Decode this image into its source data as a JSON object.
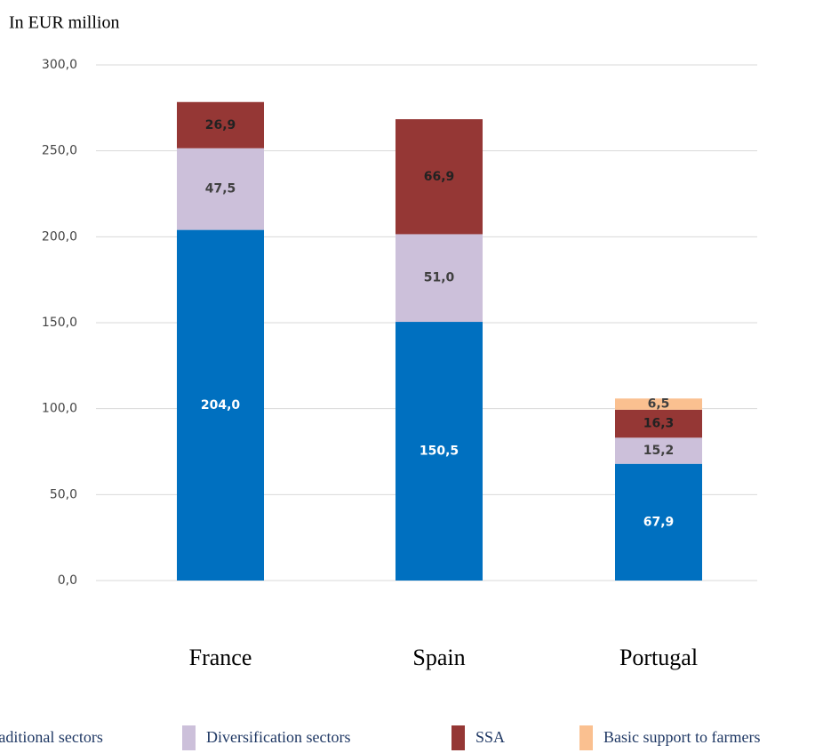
{
  "chart_data": {
    "type": "stacked_bar",
    "ylabel": "In EUR million",
    "categories": [
      "France",
      "Spain",
      "Portugal"
    ],
    "series": [
      {
        "name": "Traditional sectors",
        "color": "#0070c0",
        "values": [
          204.0,
          150.5,
          67.9
        ],
        "value_labels": [
          "204,0",
          "150,5",
          "67,9"
        ]
      },
      {
        "name": "Diversification sectors",
        "color": "#ccc0da",
        "values": [
          47.5,
          51.0,
          15.2
        ],
        "value_labels": [
          "47,5",
          "51,0",
          "15,2"
        ]
      },
      {
        "name": "SSA",
        "color": "#953735",
        "values": [
          26.9,
          66.9,
          16.3
        ],
        "value_labels": [
          "26,9",
          "66,9",
          "16,3"
        ]
      },
      {
        "name": "Basic support to farmers",
        "color": "#fac090",
        "values": [
          null,
          null,
          6.5
        ],
        "value_labels": [
          null,
          null,
          "6,5"
        ]
      }
    ],
    "ylim": [
      0,
      300
    ],
    "yticks": [
      {
        "value": 0,
        "label": "0,0"
      },
      {
        "value": 50,
        "label": "50,0"
      },
      {
        "value": 100,
        "label": "100,0"
      },
      {
        "value": 150,
        "label": "150,0"
      },
      {
        "value": 200,
        "label": "200,0"
      },
      {
        "value": 250,
        "label": "250,0"
      },
      {
        "value": 300,
        "label": "300,0"
      }
    ],
    "grid": true
  }
}
